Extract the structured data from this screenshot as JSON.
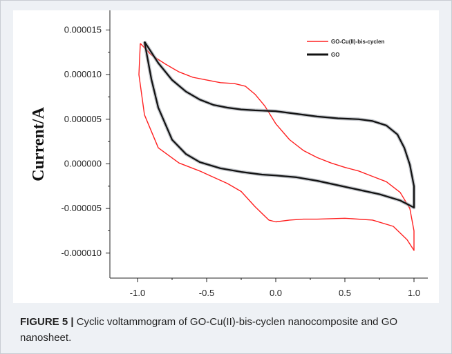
{
  "caption": {
    "label": "FIGURE 5 |",
    "text": " Cyclic voltammogram of GO-Cu(II)-bis-cyclen nanocomposite and GO nanosheet."
  },
  "chart_data": {
    "type": "line",
    "title": "",
    "xlabel": "",
    "ylabel": "Current/A",
    "xlim": [
      -1.2,
      1.1
    ],
    "ylim": [
      -1.28e-05,
      1.72e-05
    ],
    "x_ticks": [
      "-1.0",
      "-0.5",
      "0.0",
      "0.5",
      "1.0"
    ],
    "x_tick_values": [
      -1.0,
      -0.5,
      0.0,
      0.5,
      1.0
    ],
    "y_ticks": [
      "0.000015",
      "0.000010",
      "0.000005",
      "0.000000",
      "-0.000005",
      "-0.000010"
    ],
    "y_tick_values": [
      1.5e-05,
      1e-05,
      5e-06,
      0.0,
      -5e-06,
      -1e-05
    ],
    "grid": false,
    "legend_position": "top-right",
    "series": [
      {
        "name": "GO-Cu(II)-bis-cyclen",
        "color": "#ff2020",
        "x": [
          -0.98,
          -0.9,
          -0.8,
          -0.7,
          -0.6,
          -0.5,
          -0.4,
          -0.3,
          -0.22,
          -0.15,
          -0.08,
          0.0,
          0.1,
          0.2,
          0.3,
          0.4,
          0.5,
          0.6,
          0.7,
          0.8,
          0.9,
          0.97,
          1.0,
          1.0,
          0.95,
          0.85,
          0.7,
          0.5,
          0.3,
          0.2,
          0.1,
          0.0,
          -0.05,
          -0.15,
          -0.25,
          -0.35,
          -0.45,
          -0.55,
          -0.7,
          -0.85,
          -0.95,
          -0.99,
          -0.98
        ],
        "y": [
          1.35e-05,
          1.22e-05,
          1.12e-05,
          1.03e-05,
          9.7e-06,
          9.4e-06,
          9.1e-06,
          9e-06,
          8.7e-06,
          7.8e-06,
          6.5e-06,
          4.5e-06,
          2.7e-06,
          1.5e-06,
          7e-07,
          1e-07,
          -4e-07,
          -8e-07,
          -1.4e-06,
          -2e-06,
          -3.2e-06,
          -5e-06,
          -7.5e-06,
          -9.7e-06,
          -8.5e-06,
          -7e-06,
          -6.3e-06,
          -6.1e-06,
          -6.2e-06,
          -6.2e-06,
          -6.3e-06,
          -6.5e-06,
          -6.3e-06,
          -4.8e-06,
          -3.1e-06,
          -2.2e-06,
          -1.5e-06,
          -8e-07,
          1e-07,
          1.8e-06,
          5.5e-06,
          1e-05,
          1.35e-05
        ]
      },
      {
        "name": "GO",
        "color": "#111111",
        "x": [
          -0.95,
          -0.85,
          -0.75,
          -0.65,
          -0.55,
          -0.45,
          -0.35,
          -0.25,
          -0.15,
          0.0,
          0.15,
          0.3,
          0.45,
          0.6,
          0.7,
          0.8,
          0.88,
          0.93,
          0.97,
          1.0,
          1.0,
          0.9,
          0.75,
          0.6,
          0.45,
          0.3,
          0.15,
          0.0,
          -0.1,
          -0.25,
          -0.4,
          -0.55,
          -0.65,
          -0.75,
          -0.85,
          -0.9,
          -0.95
        ],
        "y": [
          1.37e-05,
          1.13e-05,
          9.4e-06,
          8.1e-06,
          7.2e-06,
          6.6e-06,
          6.3e-06,
          6.1e-06,
          6e-06,
          5.9e-06,
          5.6e-06,
          5.3e-06,
          5.1e-06,
          5e-06,
          4.8e-06,
          4.3e-06,
          3.3e-06,
          1.8e-06,
          -1e-07,
          -2.5e-06,
          -4.9e-06,
          -4.1e-06,
          -3.4e-06,
          -2.9e-06,
          -2.4e-06,
          -1.9e-06,
          -1.5e-06,
          -1.3e-06,
          -1.2e-06,
          -9e-07,
          -5e-07,
          2e-07,
          1.1e-06,
          2.7e-06,
          6.3e-06,
          9.5e-06,
          1.37e-05
        ]
      }
    ]
  }
}
